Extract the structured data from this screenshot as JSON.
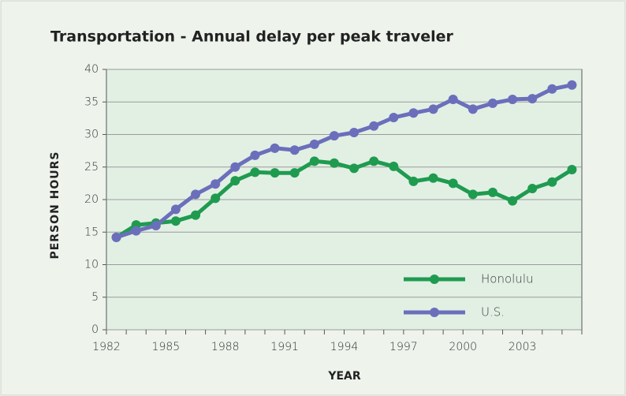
{
  "chart_data": {
    "type": "line",
    "title": "Transportation - Annual delay per peak traveler",
    "xlabel": "YEAR",
    "ylabel": "PERSON HOURS",
    "categories": [
      "1982",
      null,
      null,
      "1985",
      null,
      null,
      "1988",
      null,
      null,
      "1991",
      null,
      null,
      "1994",
      null,
      null,
      "1997",
      null,
      null,
      "2000",
      null,
      null,
      "2003",
      null,
      null
    ],
    "series": [
      {
        "name": "Honolulu",
        "color": "#1f9b50",
        "values": [
          14.2,
          16.1,
          16.4,
          16.7,
          17.6,
          20.2,
          22.9,
          24.2,
          24.1,
          24.1,
          25.9,
          25.6,
          24.8,
          25.9,
          25.1,
          22.8,
          23.3,
          22.5,
          20.8,
          21.1,
          19.8,
          21.7,
          22.7,
          24.6
        ]
      },
      {
        "name": "U.S.",
        "color": "#6b6fbb",
        "values": [
          14.2,
          15.2,
          16.0,
          18.5,
          20.8,
          22.4,
          25.0,
          26.8,
          27.9,
          27.6,
          28.5,
          29.8,
          30.3,
          31.3,
          32.6,
          33.3,
          33.9,
          35.4,
          33.9,
          34.8,
          35.4,
          35.5,
          37.0,
          37.6
        ]
      }
    ],
    "ylim": [
      0,
      40
    ],
    "yticks": [
      0,
      5,
      10,
      15,
      20,
      25,
      30,
      35,
      40
    ],
    "grid": true,
    "legend": "lower right"
  }
}
